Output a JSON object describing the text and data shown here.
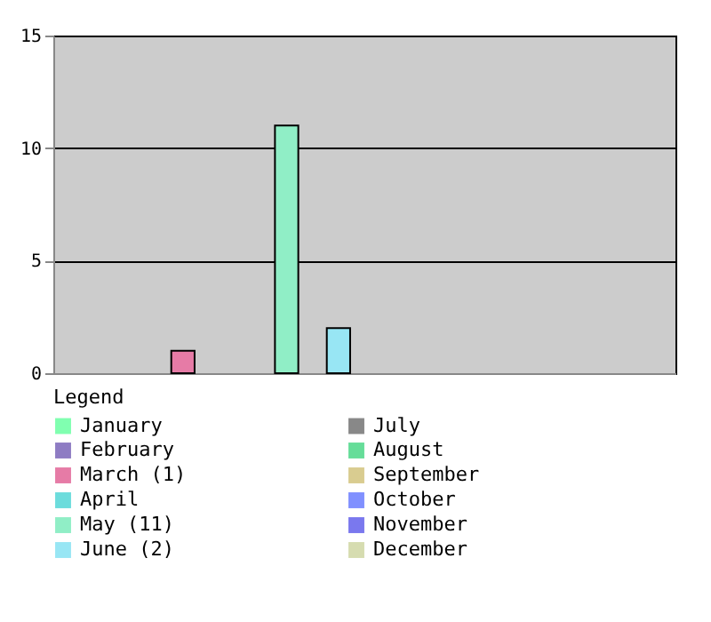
{
  "chart_data": {
    "type": "bar",
    "legend_title": "Legend",
    "categories": [
      null,
      null,
      null,
      null,
      null,
      null,
      null,
      null,
      null,
      null,
      null,
      null
    ],
    "series": [
      {
        "name": "January",
        "color": "#80ffb0",
        "values": [
          0,
          null,
          null,
          null,
          null,
          null,
          null,
          null,
          null,
          null,
          null,
          null
        ]
      },
      {
        "name": "February",
        "color": "#8e7cc3",
        "values": [
          null,
          0,
          null,
          null,
          null,
          null,
          null,
          null,
          null,
          null,
          null,
          null
        ]
      },
      {
        "name": "March (1)",
        "color": "#e67ba6",
        "values": [
          null,
          null,
          1,
          null,
          null,
          null,
          null,
          null,
          null,
          null,
          null,
          null
        ]
      },
      {
        "name": "April",
        "color": "#6cdcdc",
        "values": [
          null,
          null,
          null,
          0,
          null,
          null,
          null,
          null,
          null,
          null,
          null,
          null
        ]
      },
      {
        "name": "May (11)",
        "color": "#90eec6",
        "values": [
          null,
          null,
          null,
          null,
          11,
          null,
          null,
          null,
          null,
          null,
          null,
          null
        ]
      },
      {
        "name": "June (2)",
        "color": "#98e6f4",
        "values": [
          null,
          null,
          null,
          null,
          null,
          2,
          null,
          null,
          null,
          null,
          null,
          null
        ]
      },
      {
        "name": "July",
        "color": "#888888",
        "values": [
          null,
          null,
          null,
          null,
          null,
          null,
          0,
          null,
          null,
          null,
          null,
          null
        ]
      },
      {
        "name": "August",
        "color": "#66dd99",
        "values": [
          null,
          null,
          null,
          null,
          null,
          null,
          null,
          0,
          null,
          null,
          null,
          null
        ]
      },
      {
        "name": "September",
        "color": "#d9cc90",
        "values": [
          null,
          null,
          null,
          null,
          null,
          null,
          null,
          null,
          0,
          null,
          null,
          null
        ]
      },
      {
        "name": "October",
        "color": "#8090ff",
        "values": [
          null,
          null,
          null,
          null,
          null,
          null,
          null,
          null,
          null,
          0,
          null,
          null
        ]
      },
      {
        "name": "November",
        "color": "#7a78ee",
        "values": [
          null,
          null,
          null,
          null,
          null,
          null,
          null,
          null,
          null,
          null,
          0,
          null
        ]
      },
      {
        "name": "December",
        "color": "#d6dcb0",
        "values": [
          null,
          null,
          null,
          null,
          null,
          null,
          null,
          null,
          null,
          null,
          null,
          0
        ]
      }
    ],
    "ylim": [
      0,
      15
    ],
    "yticks": [
      0,
      5,
      10,
      15
    ],
    "grid": "y",
    "legend": "bottom",
    "tick_labels": "y"
  }
}
